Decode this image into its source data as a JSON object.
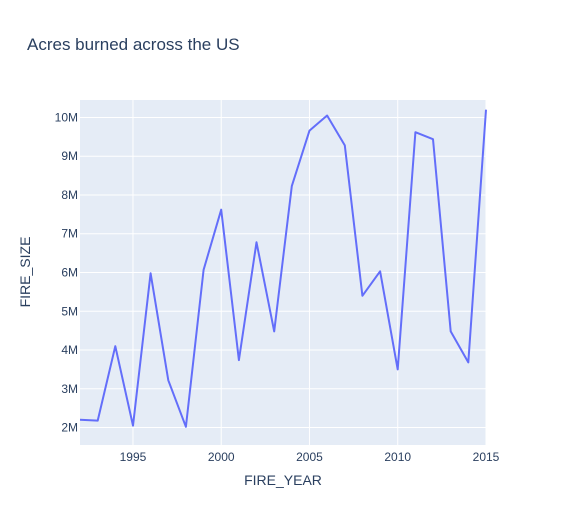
{
  "chart_data": {
    "type": "line",
    "title": "Acres burned across the US",
    "xlabel": "FIRE_YEAR",
    "ylabel": "FIRE_SIZE",
    "xlim": [
      1992,
      2015
    ],
    "ylim": [
      1550000,
      10450000
    ],
    "x_ticks": [
      1995,
      2000,
      2005,
      2010,
      2015
    ],
    "y_ticks": [
      2000000,
      3000000,
      4000000,
      5000000,
      6000000,
      7000000,
      8000000,
      9000000,
      10000000
    ],
    "y_tick_labels": [
      "2M",
      "3M",
      "4M",
      "5M",
      "6M",
      "7M",
      "8M",
      "9M",
      "10M"
    ],
    "grid": true,
    "series": [
      {
        "color": "#636efa",
        "x": [
          1992,
          1993,
          1994,
          1995,
          1996,
          1997,
          1998,
          1999,
          2000,
          2001,
          2002,
          2003,
          2004,
          2005,
          2006,
          2007,
          2008,
          2009,
          2010,
          2011,
          2012,
          2013,
          2014,
          2015
        ],
        "y": [
          2200000,
          2180000,
          4100000,
          2050000,
          5980000,
          3220000,
          2020000,
          6070000,
          7620000,
          3740000,
          6780000,
          4480000,
          8230000,
          9660000,
          10050000,
          9280000,
          5400000,
          6030000,
          3500000,
          9620000,
          9440000,
          4480000,
          3680000,
          10200000
        ]
      }
    ]
  }
}
